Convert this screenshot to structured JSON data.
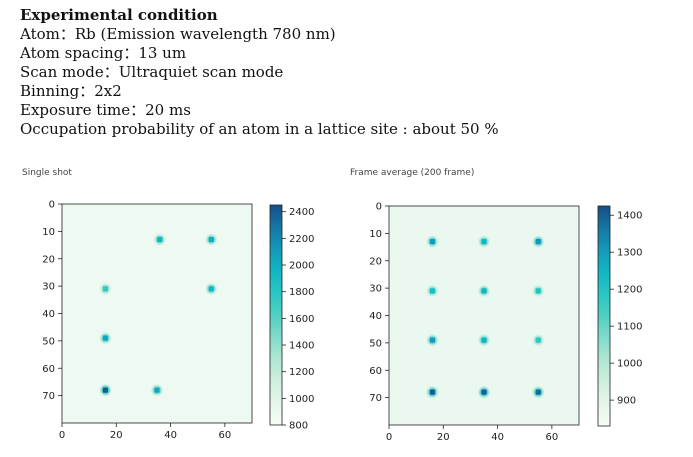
{
  "header": {
    "title": "Experimental condition",
    "lines": [
      "Atom：Rb (Emission wavelength 780 nm)",
      "Atom spacing：13 um",
      "Scan mode：Ultraquiet scan mode",
      "Binning：2x2",
      "Exposure time：20 ms",
      "Occupation probability of an atom in a lattice site : about 50 %"
    ]
  },
  "colors": {
    "background_cell": "#eef9f1",
    "cmap": [
      "#f6fcf7",
      "#d9f2e2",
      "#a4e3cf",
      "#4fd0c2",
      "#10bfc6",
      "#1690b6",
      "#134f88"
    ]
  },
  "chart_data": [
    {
      "type": "heatmap",
      "title": "Single shot",
      "xlabel": "",
      "ylabel": "",
      "xlim": [
        0,
        70
      ],
      "ylim": [
        80,
        0
      ],
      "x_ticks": [
        0,
        20,
        40,
        60
      ],
      "y_ticks": [
        0,
        10,
        20,
        30,
        40,
        50,
        60,
        70
      ],
      "colorbar": {
        "min": 800,
        "max": 2450,
        "ticks": [
          800,
          1000,
          1200,
          1400,
          1600,
          1800,
          2000,
          2200,
          2400
        ]
      },
      "background_value": 880,
      "spots": [
        {
          "x": 36,
          "y": 13,
          "value": 1950
        },
        {
          "x": 55,
          "y": 13,
          "value": 2000
        },
        {
          "x": 16,
          "y": 31,
          "value": 1750
        },
        {
          "x": 55,
          "y": 31,
          "value": 1950
        },
        {
          "x": 16,
          "y": 49,
          "value": 2050
        },
        {
          "x": 16,
          "y": 68,
          "value": 2400
        },
        {
          "x": 35,
          "y": 68,
          "value": 2050
        }
      ]
    },
    {
      "type": "heatmap",
      "title": "Frame average (200 frame)",
      "xlabel": "",
      "ylabel": "",
      "xlim": [
        0,
        70
      ],
      "ylim": [
        80,
        0
      ],
      "x_ticks": [
        0,
        20,
        40,
        60
      ],
      "y_ticks": [
        0,
        10,
        20,
        30,
        40,
        50,
        60,
        70
      ],
      "colorbar": {
        "min": 830,
        "max": 1425,
        "ticks": [
          900,
          1000,
          1100,
          1200,
          1300,
          1400
        ]
      },
      "background_value": 870,
      "spots": [
        {
          "x": 16,
          "y": 13,
          "value": 1300
        },
        {
          "x": 35,
          "y": 13,
          "value": 1250
        },
        {
          "x": 55,
          "y": 13,
          "value": 1320
        },
        {
          "x": 16,
          "y": 31,
          "value": 1220
        },
        {
          "x": 35,
          "y": 31,
          "value": 1250
        },
        {
          "x": 55,
          "y": 31,
          "value": 1200
        },
        {
          "x": 16,
          "y": 49,
          "value": 1300
        },
        {
          "x": 35,
          "y": 49,
          "value": 1250
        },
        {
          "x": 55,
          "y": 49,
          "value": 1180
        },
        {
          "x": 16,
          "y": 68,
          "value": 1400
        },
        {
          "x": 35,
          "y": 68,
          "value": 1400
        },
        {
          "x": 55,
          "y": 68,
          "value": 1380
        }
      ]
    }
  ]
}
